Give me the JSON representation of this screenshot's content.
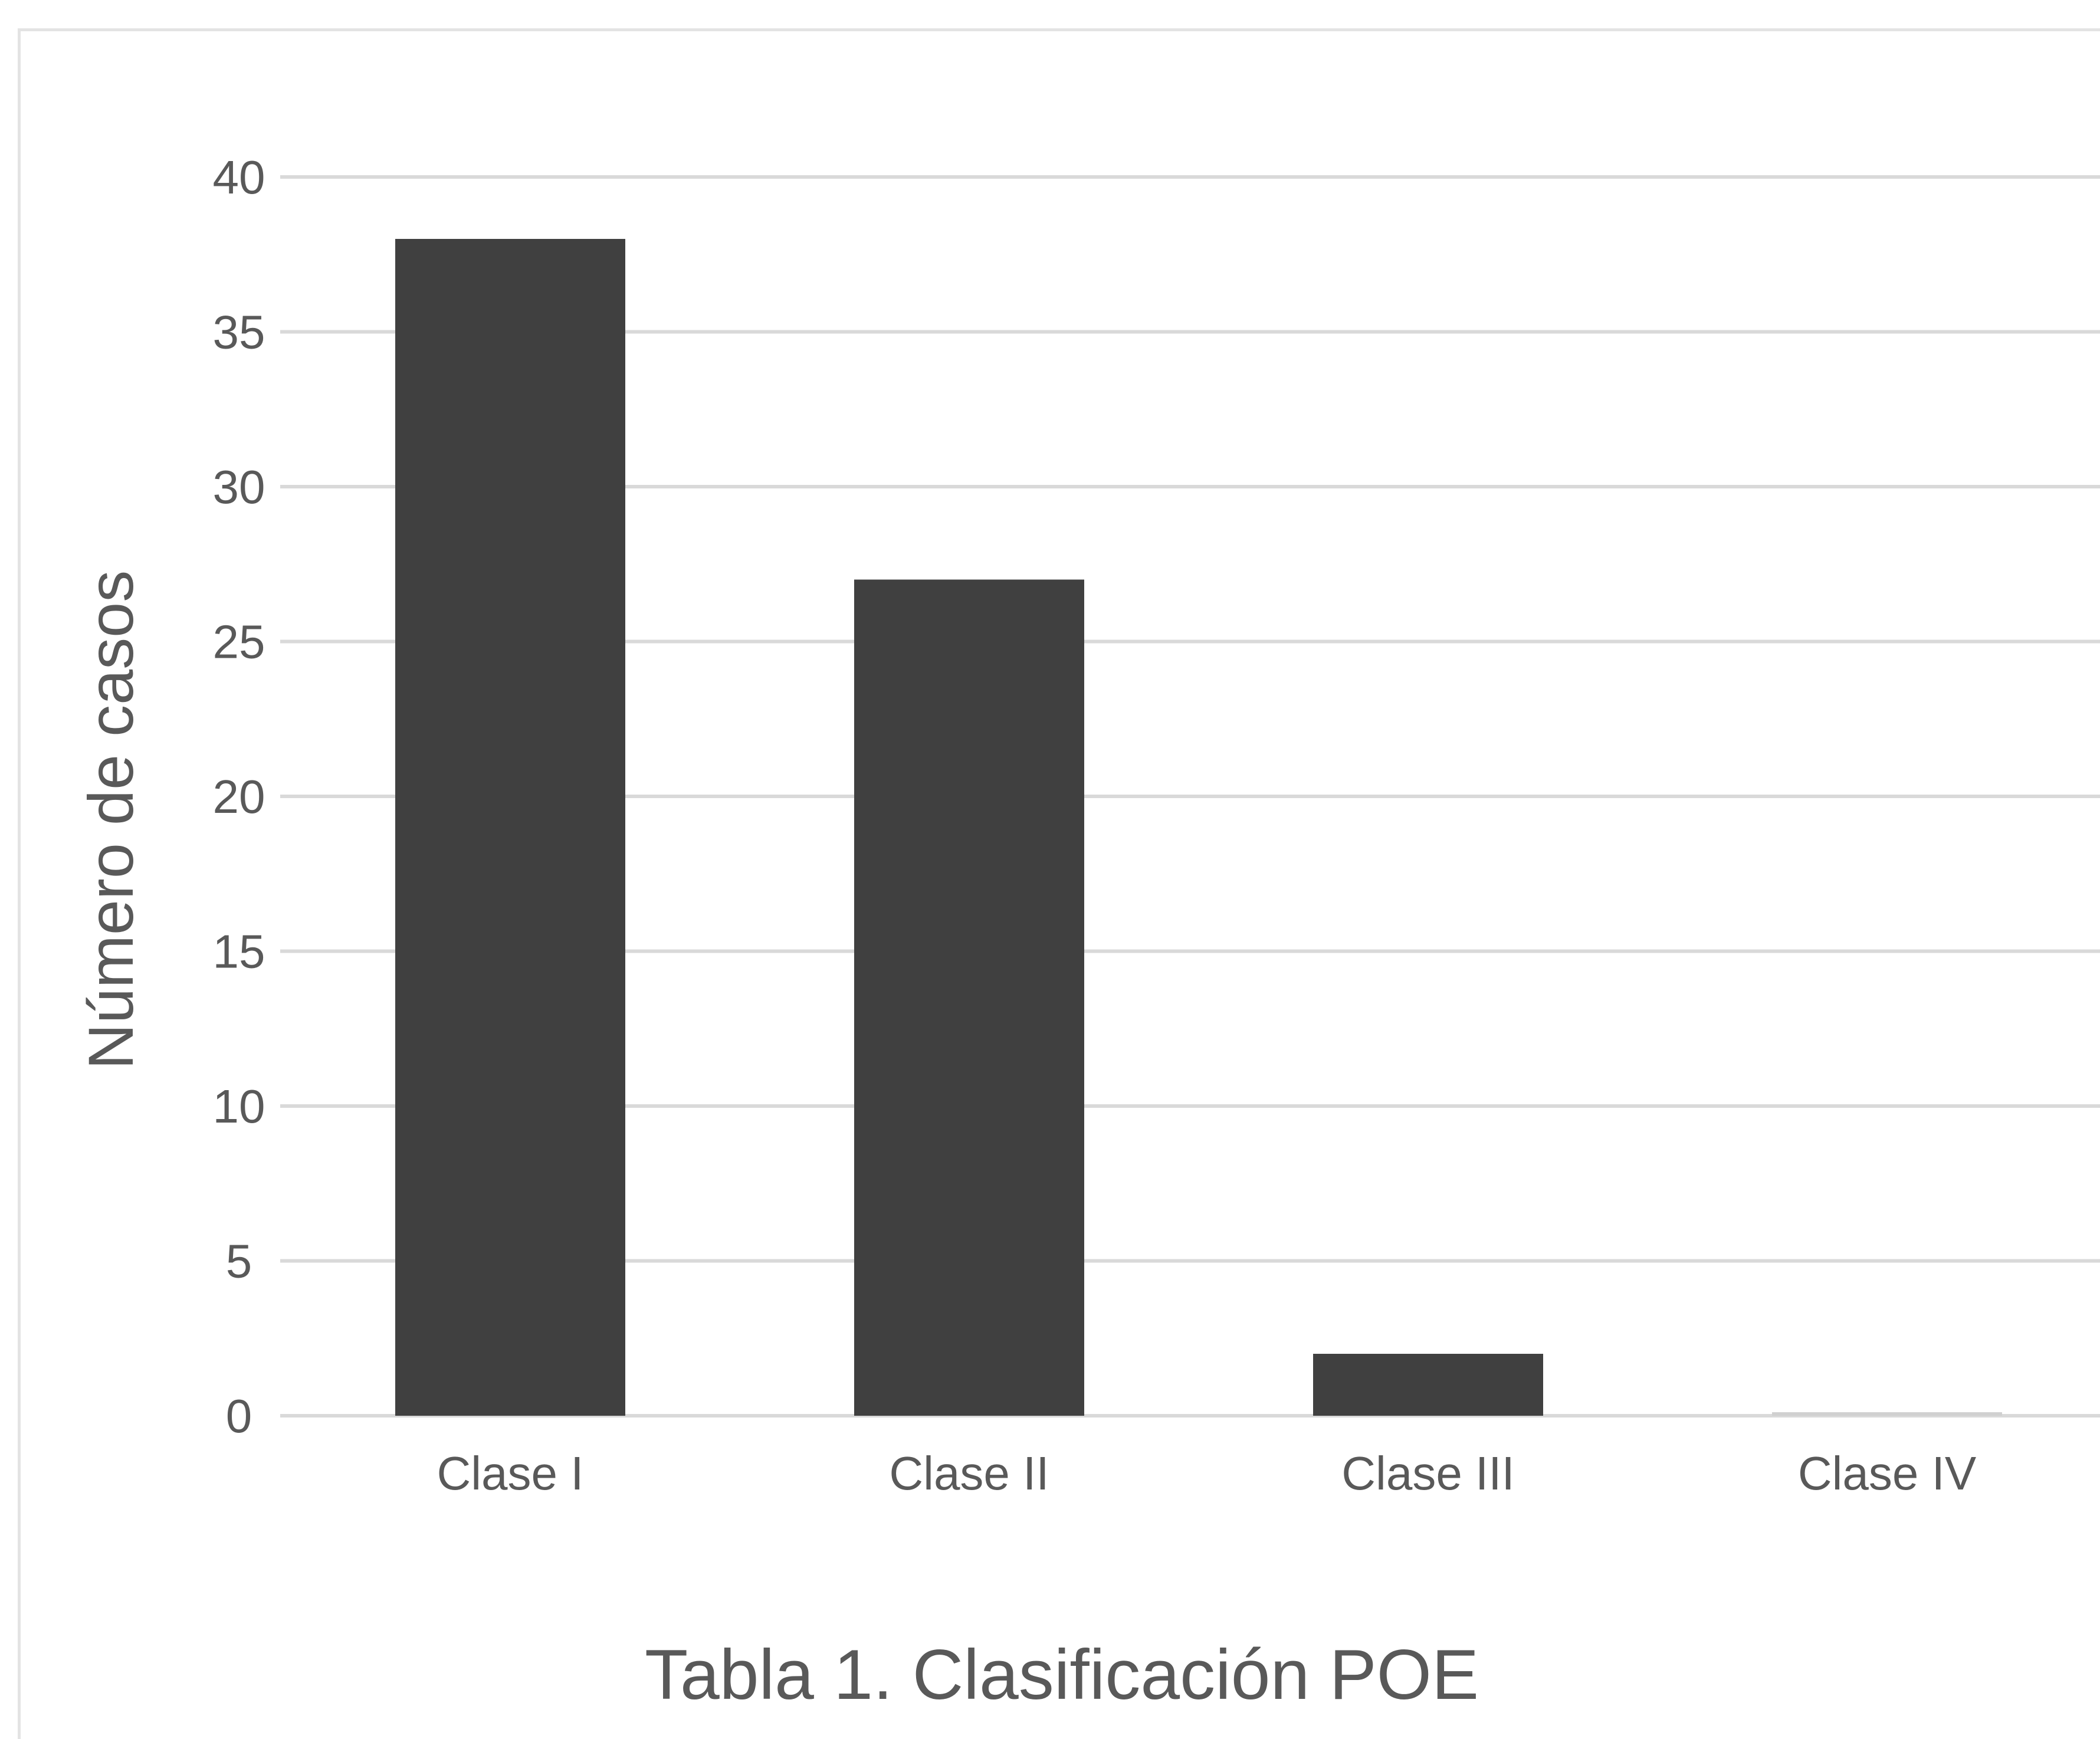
{
  "chart_data": {
    "type": "bar",
    "categories": [
      "Clase I",
      "Clase II",
      "Clase III",
      "Clase IV"
    ],
    "values": [
      38,
      27,
      2,
      0
    ],
    "title": "Tabla 1. Clasificación POE",
    "xlabel": "",
    "ylabel": "Número de casos",
    "ylim": [
      0,
      40
    ],
    "yticks": [
      0,
      5,
      10,
      15,
      20,
      25,
      30,
      35,
      40
    ],
    "grid": true,
    "legend": "none",
    "colors": {
      "bar": "#404040",
      "grid": "#d9d9d9",
      "text": "#595959"
    }
  }
}
